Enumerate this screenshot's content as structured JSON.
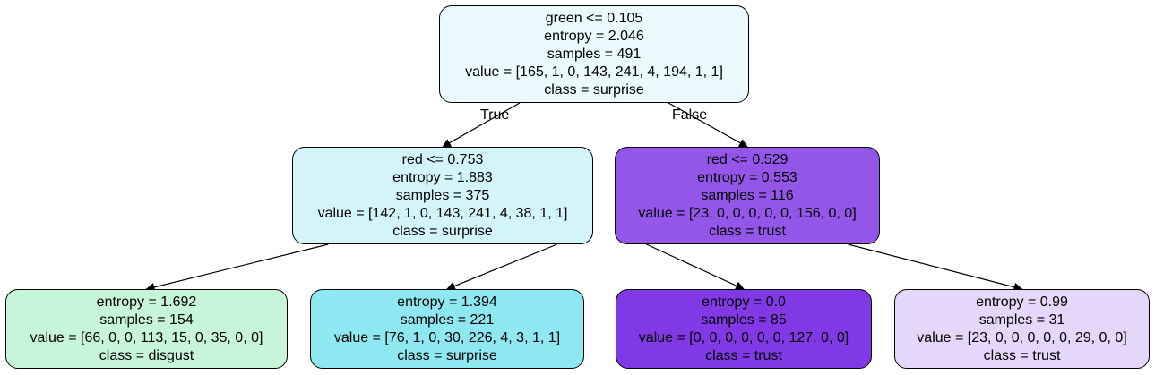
{
  "tree": {
    "edge_labels": {
      "true": "True",
      "false": "False"
    },
    "nodes": [
      {
        "lines": [
          "green <= 0.105",
          "entropy = 2.046",
          "samples = 491",
          "value = [165, 1, 0, 143, 241, 4, 194, 1, 1]",
          "class = surprise"
        ],
        "fill": "#ebfafc",
        "parent": null
      },
      {
        "lines": [
          "red <= 0.753",
          "entropy = 1.883",
          "samples = 375",
          "value = [142, 1, 0, 143, 241, 4, 38, 1, 1]",
          "class = surprise"
        ],
        "fill": "#d3f5f9",
        "parent": 0
      },
      {
        "lines": [
          "red <= 0.529",
          "entropy = 0.553",
          "samples = 116",
          "value = [23, 0, 0, 0, 0, 0, 156, 0, 0]",
          "class = trust"
        ],
        "fill": "#9456e9",
        "parent": 0
      },
      {
        "lines": [
          "entropy = 1.692",
          "samples = 154",
          "value = [66, 0, 0, 113, 15, 0, 35, 0, 0]",
          "class = disgust"
        ],
        "fill": "#c6f5da",
        "parent": 1
      },
      {
        "lines": [
          "entropy = 1.394",
          "samples = 221",
          "value = [76, 1, 0, 30, 226, 4, 3, 1, 1]",
          "class = surprise"
        ],
        "fill": "#8fe8f1",
        "parent": 1
      },
      {
        "lines": [
          "entropy = 0.0",
          "samples = 85",
          "value = [0, 0, 0, 0, 0, 0, 127, 0, 0]",
          "class = trust"
        ],
        "fill": "#8139e5",
        "parent": 2
      },
      {
        "lines": [
          "entropy = 0.99",
          "samples = 31",
          "value = [23, 0, 0, 0, 0, 0, 29, 0, 0]",
          "class = trust"
        ],
        "fill": "#e5d7f9",
        "parent": 2
      }
    ]
  }
}
